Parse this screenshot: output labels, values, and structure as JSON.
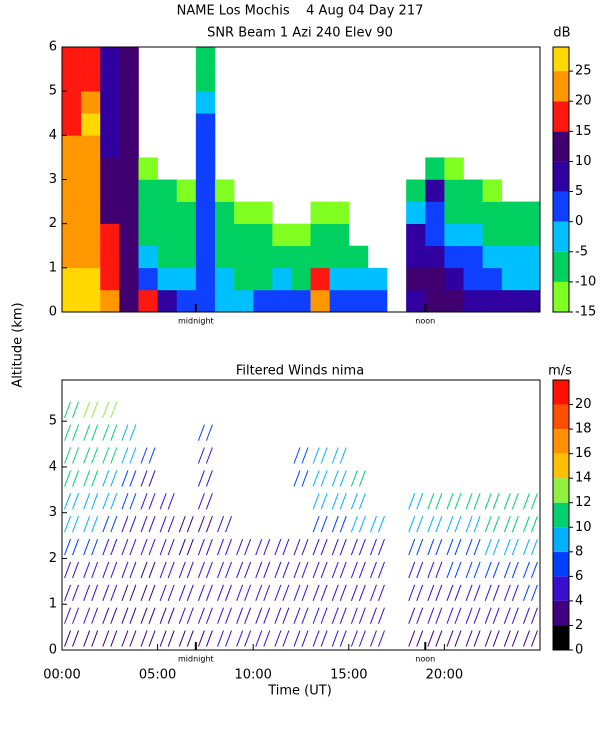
{
  "chart_data": [
    {
      "type": "heatmap",
      "title": "NAME Los Mochis    4 Aug 04 Day 217",
      "subtitle": "SNR Beam 1 Azi 240 Elev 90",
      "ylabel": "Altitude (km)",
      "colorbar_label": "dB",
      "xlim": [
        0,
        25
      ],
      "ylim": [
        0,
        6
      ],
      "yticks": [
        0,
        1,
        2,
        3,
        4,
        5,
        6
      ],
      "annotations": [
        {
          "x": 7,
          "text": "midnight"
        },
        {
          "x": 19,
          "text": "noon"
        }
      ],
      "clim": [
        -15,
        29
      ],
      "levels": [
        -15,
        -10,
        -5,
        0,
        5,
        10,
        15,
        20,
        25
      ],
      "colors": [
        "#80ff20",
        "#00d060",
        "#00c0ff",
        "#1040ff",
        "#3000a0",
        "#400070",
        "#ff1810",
        "#ff9800",
        "#ffd800"
      ],
      "cticks": [
        -15,
        -10,
        -5,
        0,
        5,
        10,
        15,
        20,
        25
      ],
      "x": [
        0.5,
        1.5,
        2.5,
        3.5,
        4.5,
        5.5,
        6.5,
        7.5,
        8.5,
        9.5,
        10.5,
        11.5,
        12.5,
        13.5,
        14.5,
        15.5,
        16.5,
        17.5,
        18.5,
        19.5,
        20.5,
        21.5,
        22.5,
        23.5,
        24.5
      ],
      "y": [
        0.25,
        0.75,
        1.25,
        1.75,
        2.25,
        2.75,
        3.25,
        3.75,
        4.25,
        4.75,
        5.25,
        5.75
      ],
      "values": [
        [
          25,
          25,
          20,
          10,
          15,
          5,
          0,
          0,
          -5,
          -5,
          0,
          0,
          0,
          20,
          0,
          0,
          0,
          null,
          5,
          10,
          10,
          5,
          5,
          5,
          5
        ],
        [
          25,
          25,
          15,
          10,
          0,
          -5,
          -5,
          0,
          -5,
          -10,
          -10,
          -5,
          -10,
          15,
          -5,
          -5,
          -5,
          null,
          10,
          10,
          5,
          0,
          0,
          -5,
          -5
        ],
        [
          20,
          20,
          15,
          10,
          -5,
          -10,
          -10,
          0,
          -10,
          -10,
          -10,
          -10,
          -10,
          -10,
          -10,
          -10,
          null,
          null,
          5,
          5,
          0,
          0,
          -5,
          -5,
          -5
        ],
        [
          20,
          20,
          15,
          10,
          -10,
          -10,
          -10,
          0,
          -10,
          -10,
          -10,
          -15,
          -15,
          -10,
          -10,
          null,
          null,
          null,
          5,
          0,
          -5,
          -5,
          -10,
          -10,
          -10
        ],
        [
          20,
          20,
          10,
          10,
          -10,
          -10,
          -10,
          0,
          -10,
          -15,
          -15,
          null,
          null,
          -15,
          -15,
          null,
          null,
          null,
          -5,
          0,
          -10,
          -10,
          -10,
          -10,
          -10
        ],
        [
          20,
          20,
          10,
          10,
          -10,
          -10,
          -15,
          0,
          -15,
          null,
          null,
          null,
          null,
          null,
          null,
          null,
          null,
          null,
          -10,
          5,
          -10,
          -10,
          -15,
          null,
          null
        ],
        [
          20,
          20,
          10,
          10,
          -15,
          null,
          null,
          0,
          null,
          null,
          null,
          null,
          null,
          null,
          null,
          null,
          null,
          null,
          null,
          -10,
          -15,
          null,
          null,
          null,
          null
        ],
        [
          20,
          20,
          5,
          10,
          null,
          null,
          null,
          0,
          null,
          null,
          null,
          null,
          null,
          null,
          null,
          null,
          null,
          null,
          null,
          null,
          null,
          null,
          null,
          null,
          null
        ],
        [
          15,
          25,
          5,
          10,
          null,
          null,
          null,
          0,
          null,
          null,
          null,
          null,
          null,
          null,
          null,
          null,
          null,
          null,
          null,
          null,
          null,
          null,
          null,
          null,
          null
        ],
        [
          15,
          20,
          5,
          10,
          null,
          null,
          null,
          -5,
          null,
          null,
          null,
          null,
          null,
          null,
          null,
          null,
          null,
          null,
          null,
          null,
          null,
          null,
          null,
          null,
          null
        ],
        [
          15,
          15,
          5,
          10,
          null,
          null,
          null,
          -10,
          null,
          null,
          null,
          null,
          null,
          null,
          null,
          null,
          null,
          null,
          null,
          null,
          null,
          null,
          null,
          null,
          null
        ],
        [
          15,
          15,
          5,
          10,
          null,
          null,
          null,
          -10,
          null,
          null,
          null,
          null,
          null,
          null,
          null,
          null,
          null,
          null,
          null,
          null,
          null,
          null,
          null,
          null,
          null
        ]
      ]
    },
    {
      "type": "barbs",
      "title": "Filtered Winds nima",
      "xlabel": "Time (UT)",
      "colorbar_label": "m/s",
      "xlim": [
        0,
        25
      ],
      "ylim": [
        0,
        5.9
      ],
      "yticks": [
        0,
        1,
        2,
        3,
        4,
        5
      ],
      "xticks": [
        {
          "value": 0,
          "label": "00:00"
        },
        {
          "value": 5,
          "label": "05:00"
        },
        {
          "value": 10,
          "label": "10:00"
        },
        {
          "value": 15,
          "label": "15:00"
        },
        {
          "value": 20,
          "label": "20:00"
        }
      ],
      "annotations": [
        {
          "x": 7,
          "text": "midnight"
        },
        {
          "x": 19,
          "text": "noon"
        }
      ],
      "clim": [
        0,
        22
      ],
      "levels": [
        0,
        2,
        4,
        6,
        8,
        10,
        12,
        14,
        16,
        18,
        20
      ],
      "colors": [
        "#000000",
        "#400080",
        "#3a10d0",
        "#0040ff",
        "#00b0ff",
        "#00d070",
        "#90f040",
        "#ffc000",
        "#ff9000",
        "#ff5000",
        "#ff1000"
      ],
      "cticks": [
        0,
        2,
        4,
        6,
        8,
        10,
        12,
        14,
        16,
        18,
        20
      ],
      "x": [
        0.5,
        1.5,
        2.5,
        3.5,
        4.5,
        5.5,
        6.5,
        7.5,
        8.5,
        9.5,
        10.5,
        11.5,
        12.5,
        13.5,
        14.5,
        15.5,
        16.5,
        17.5,
        18.5,
        19.5,
        20.5,
        21.5,
        22.5,
        23.5,
        24.5
      ],
      "y": [
        0.25,
        0.75,
        1.25,
        1.75,
        2.25,
        2.75,
        3.25,
        3.75,
        4.25,
        4.75,
        5.25
      ],
      "values": [
        [
          3,
          3,
          3,
          2,
          3,
          3,
          3,
          3,
          4,
          4,
          4,
          4,
          5,
          5,
          5,
          5,
          5,
          null,
          3,
          3,
          3,
          3,
          3,
          3,
          3
        ],
        [
          4,
          4,
          3,
          3,
          3,
          3,
          4,
          4,
          5,
          5,
          5,
          5,
          5,
          5,
          5,
          5,
          5,
          null,
          4,
          4,
          4,
          4,
          4,
          4,
          4
        ],
        [
          5,
          4,
          4,
          3,
          3,
          4,
          4,
          4,
          5,
          5,
          5,
          5,
          5,
          5,
          5,
          5,
          5,
          null,
          5,
          5,
          5,
          5,
          5,
          5,
          6
        ],
        [
          5,
          5,
          4,
          4,
          3,
          4,
          4,
          4,
          5,
          5,
          5,
          5,
          5,
          5,
          5,
          5,
          5,
          null,
          5,
          5,
          6,
          6,
          6,
          6,
          7
        ],
        [
          6,
          6,
          5,
          4,
          4,
          4,
          3,
          4,
          4,
          4,
          4,
          4,
          4,
          5,
          5,
          5,
          5,
          null,
          6,
          6,
          7,
          7,
          8,
          8,
          8
        ],
        [
          8,
          8,
          6,
          5,
          4,
          4,
          3,
          3,
          4,
          null,
          null,
          null,
          null,
          7,
          7,
          8,
          8,
          null,
          8,
          8,
          9,
          9,
          10,
          10,
          10
        ],
        [
          9,
          9,
          8,
          6,
          5,
          5,
          null,
          4,
          null,
          null,
          null,
          null,
          null,
          8,
          8,
          9,
          null,
          null,
          9,
          10,
          11,
          11,
          11,
          11,
          11
        ],
        [
          10,
          10,
          9,
          7,
          5,
          null,
          null,
          5,
          null,
          null,
          null,
          null,
          7,
          8,
          9,
          10,
          null,
          null,
          null,
          null,
          null,
          null,
          null,
          null,
          null
        ],
        [
          10,
          11,
          10,
          8,
          6,
          null,
          null,
          5,
          null,
          null,
          null,
          null,
          7,
          9,
          9,
          null,
          null,
          null,
          null,
          null,
          null,
          null,
          null,
          null,
          null
        ],
        [
          11,
          11,
          11,
          9,
          null,
          null,
          null,
          6,
          null,
          null,
          null,
          null,
          null,
          null,
          null,
          null,
          null,
          null,
          null,
          null,
          null,
          null,
          null,
          null,
          null
        ],
        [
          11,
          12,
          13,
          null,
          null,
          null,
          null,
          null,
          null,
          null,
          null,
          null,
          null,
          null,
          null,
          null,
          null,
          null,
          null,
          null,
          null,
          null,
          null,
          null,
          null
        ]
      ]
    }
  ]
}
